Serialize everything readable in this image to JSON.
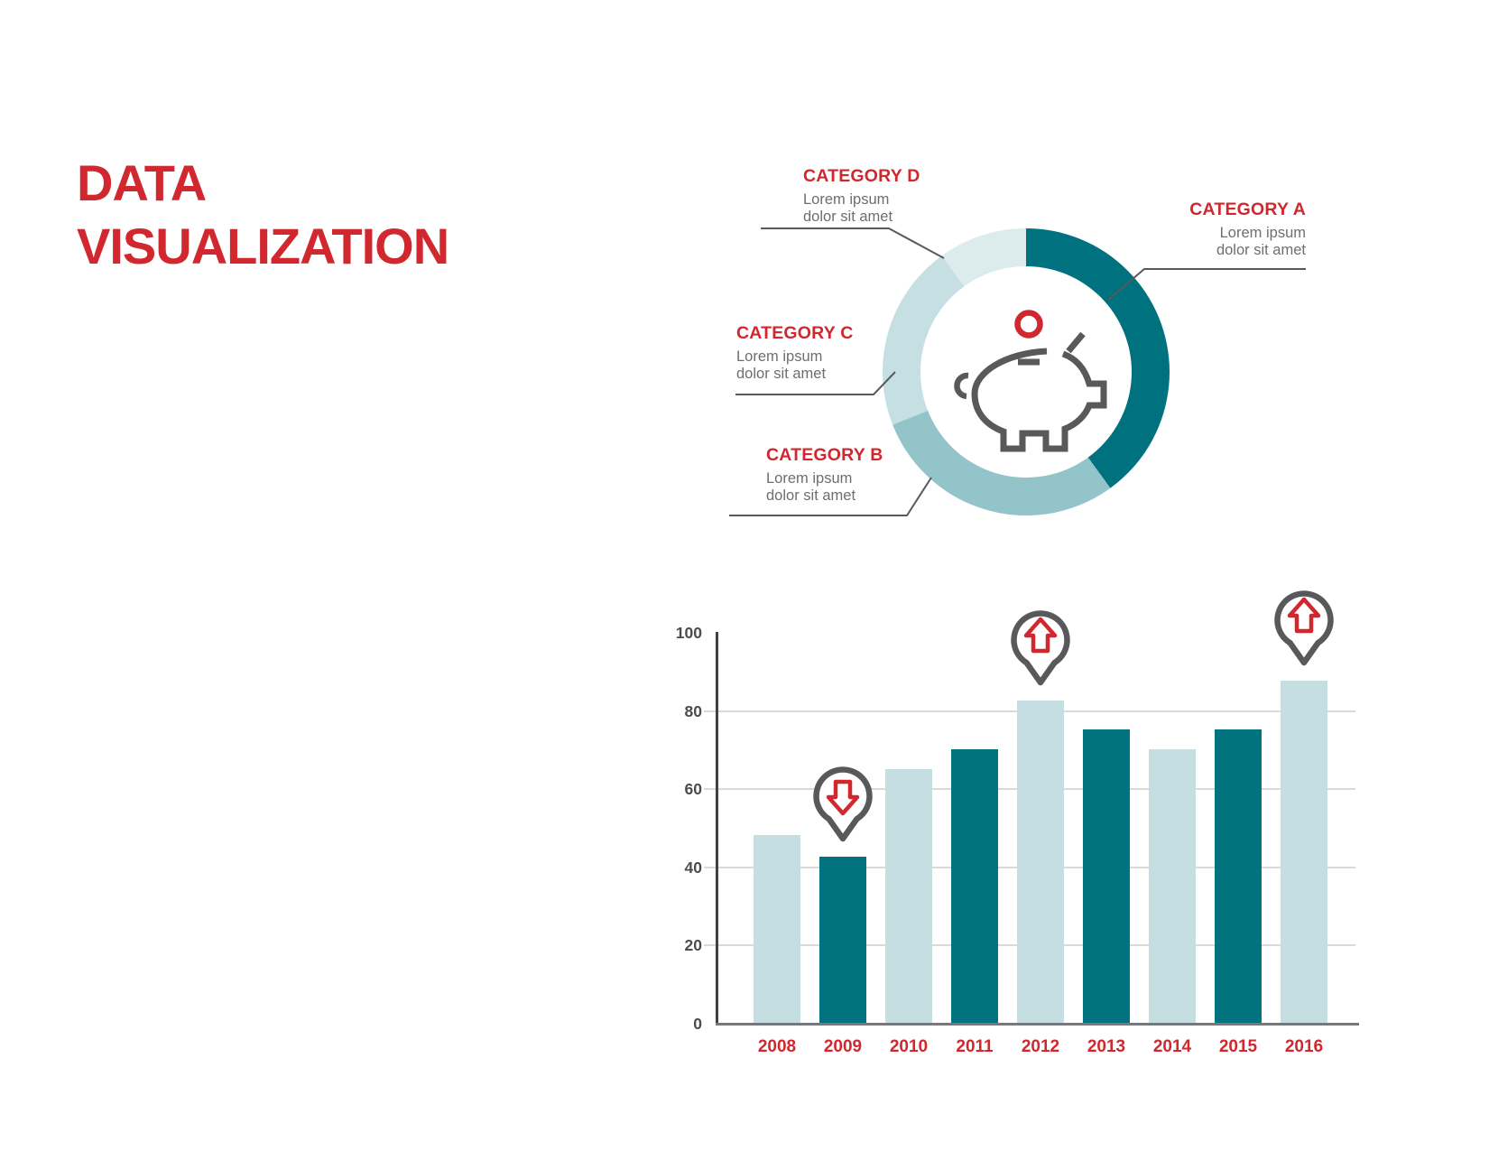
{
  "page": {
    "title_line1": "DATA",
    "title_line2": "VISUALIZATION"
  },
  "colors": {
    "accent_red": "#d0282e",
    "dark_teal": "#00727f",
    "mid_teal": "#93c4ca",
    "light_teal": "#c6dfe2",
    "pale_teal": "#dcebec",
    "bar_light": "#c5dee1",
    "bar_dark": "#00737f",
    "icon_gray": "#58595b",
    "desc_gray": "#6d6e71",
    "gridline": "#ded8d2",
    "axis_dark": "#414042",
    "x_axis_gray": "#77787b",
    "tick_label": "#4b4c4e"
  },
  "donut": {
    "center_icon": "piggy-bank-icon",
    "coin_icon": "coin-icon",
    "segments": [
      {
        "label": "CATEGORY A",
        "desc_line1": "Lorem ipsum",
        "desc_line2": "dolor sit amet",
        "percent": 40,
        "color": "#00727f"
      },
      {
        "label": "CATEGORY B",
        "desc_line1": "Lorem ipsum",
        "desc_line2": "dolor sit amet",
        "percent": 29,
        "color": "#93c4ca"
      },
      {
        "label": "CATEGORY C",
        "desc_line1": "Lorem ipsum",
        "desc_line2": "dolor sit amet",
        "percent": 21,
        "color": "#c6dfe2"
      },
      {
        "label": "CATEGORY D",
        "desc_line1": "Lorem ipsum",
        "desc_line2": "dolor sit amet",
        "percent": 10,
        "color": "#dcebec"
      }
    ]
  },
  "chart_data": {
    "type": "bar",
    "categories": [
      "2008",
      "2009",
      "2010",
      "2011",
      "2012",
      "2013",
      "2014",
      "2015",
      "2016"
    ],
    "values": [
      48,
      42.5,
      65,
      70,
      82.5,
      75,
      70,
      75,
      87.5
    ],
    "bar_color_pattern": [
      "#c5dee1",
      "#00737f"
    ],
    "title": "",
    "xlabel": "",
    "ylabel": "",
    "ylim": [
      0,
      100
    ],
    "yticks": [
      0,
      20,
      40,
      60,
      80,
      100
    ],
    "grid": true,
    "markers": [
      {
        "year": "2009",
        "direction": "down",
        "icon": "down-arrow-pin-icon"
      },
      {
        "year": "2012",
        "direction": "up",
        "icon": "up-arrow-pin-icon"
      },
      {
        "year": "2016",
        "direction": "up",
        "icon": "up-arrow-pin-icon"
      }
    ]
  }
}
